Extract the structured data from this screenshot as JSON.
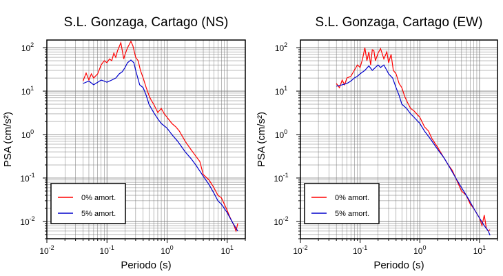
{
  "colors": {
    "undamped": "#ff0000",
    "damped": "#0000cc",
    "grid": "#777777",
    "frame": "#000000"
  },
  "chart_data": [
    {
      "type": "line",
      "title": "S.L. Gonzaga, Cartago (NS)",
      "xlabel": "Periodo (s)",
      "ylabel": "PSA (cm/s²)",
      "xscale": "log",
      "yscale": "log",
      "xlim": [
        0.01,
        20
      ],
      "ylim": [
        0.004,
        150
      ],
      "xticks": [
        {
          "base": "10",
          "exp": "-2"
        },
        {
          "base": "10",
          "exp": "-1"
        },
        {
          "base": "10",
          "exp": "0"
        },
        {
          "base": "10",
          "exp": "1"
        }
      ],
      "yticks": [
        {
          "base": "10",
          "exp": "-2"
        },
        {
          "base": "10",
          "exp": "-1"
        },
        {
          "base": "10",
          "exp": "0"
        },
        {
          "base": "10",
          "exp": "1"
        },
        {
          "base": "10",
          "exp": "2"
        }
      ],
      "grid": true,
      "legend_position": "bottom-left",
      "series": [
        {
          "name": "0% amort.",
          "color": "#ff0000",
          "x": [
            0.04,
            0.045,
            0.05,
            0.055,
            0.06,
            0.07,
            0.08,
            0.09,
            0.1,
            0.11,
            0.12,
            0.13,
            0.14,
            0.15,
            0.17,
            0.19,
            0.2,
            0.22,
            0.25,
            0.27,
            0.3,
            0.33,
            0.36,
            0.4,
            0.45,
            0.5,
            0.55,
            0.6,
            0.7,
            0.8,
            0.9,
            1.0,
            1.2,
            1.4,
            1.6,
            2.0,
            2.5,
            3.0,
            3.5,
            4.0,
            5.0,
            6.0,
            7.0,
            8.0,
            10.0,
            11.0,
            12.0,
            13.0,
            14.0,
            15.0
          ],
          "y": [
            17,
            26,
            18,
            25,
            20,
            25,
            40,
            50,
            45,
            55,
            50,
            75,
            60,
            85,
            130,
            55,
            70,
            100,
            140,
            110,
            60,
            50,
            30,
            20,
            12,
            8,
            6,
            5,
            3.2,
            4,
            3,
            2.5,
            1.8,
            1.5,
            1.2,
            0.7,
            0.45,
            0.32,
            0.24,
            0.12,
            0.09,
            0.06,
            0.04,
            0.035,
            0.018,
            0.013,
            0.01,
            0.008,
            0.006,
            0.009
          ]
        },
        {
          "name": "5% amort.",
          "color": "#0000cc",
          "x": [
            0.04,
            0.05,
            0.06,
            0.07,
            0.08,
            0.09,
            0.1,
            0.12,
            0.14,
            0.16,
            0.18,
            0.2,
            0.22,
            0.25,
            0.28,
            0.3,
            0.35,
            0.4,
            0.45,
            0.5,
            0.6,
            0.7,
            0.8,
            1.0,
            1.2,
            1.5,
            2.0,
            2.5,
            3.0,
            4.0,
            5.0,
            6.0,
            7.0,
            8.0,
            10.0,
            12.0,
            14.0,
            15.0
          ],
          "y": [
            15,
            17,
            14,
            16,
            18,
            17,
            16,
            18,
            20,
            25,
            28,
            35,
            45,
            52,
            45,
            30,
            14,
            12,
            8,
            5,
            3.2,
            2.3,
            1.8,
            1.4,
            1.0,
            0.7,
            0.4,
            0.28,
            0.2,
            0.11,
            0.07,
            0.045,
            0.03,
            0.025,
            0.016,
            0.01,
            0.007,
            0.006
          ]
        }
      ]
    },
    {
      "type": "line",
      "title": "S.L. Gonzaga, Cartago (EW)",
      "xlabel": "Periodo (s)",
      "ylabel": "PSA (cm/s²)",
      "xscale": "log",
      "yscale": "log",
      "xlim": [
        0.01,
        20
      ],
      "ylim": [
        0.004,
        150
      ],
      "xticks": [
        {
          "base": "10",
          "exp": "-2"
        },
        {
          "base": "10",
          "exp": "-1"
        },
        {
          "base": "10",
          "exp": "0"
        },
        {
          "base": "10",
          "exp": "1"
        }
      ],
      "yticks": [
        {
          "base": "10",
          "exp": "-2"
        },
        {
          "base": "10",
          "exp": "-1"
        },
        {
          "base": "10",
          "exp": "0"
        },
        {
          "base": "10",
          "exp": "1"
        },
        {
          "base": "10",
          "exp": "2"
        }
      ],
      "grid": true,
      "legend_position": "bottom-left",
      "series": [
        {
          "name": "0% amort.",
          "color": "#ff0000",
          "x": [
            0.04,
            0.045,
            0.05,
            0.055,
            0.06,
            0.07,
            0.08,
            0.09,
            0.1,
            0.11,
            0.12,
            0.13,
            0.14,
            0.15,
            0.16,
            0.17,
            0.18,
            0.2,
            0.22,
            0.25,
            0.28,
            0.3,
            0.33,
            0.36,
            0.4,
            0.45,
            0.5,
            0.55,
            0.6,
            0.7,
            0.8,
            1.0,
            1.2,
            1.4,
            1.6,
            2.0,
            2.5,
            3.0,
            3.5,
            4.0,
            5.0,
            6.0,
            7.0,
            8.0,
            10.0,
            11.0,
            12.0,
            13.0,
            14.0,
            15.0
          ],
          "y": [
            15,
            12,
            18,
            14,
            20,
            22,
            30,
            40,
            35,
            55,
            100,
            50,
            80,
            40,
            90,
            85,
            50,
            75,
            95,
            55,
            80,
            45,
            70,
            30,
            25,
            15,
            12,
            8,
            6,
            4,
            3.5,
            2.5,
            1.5,
            1.2,
            0.8,
            0.5,
            0.3,
            0.2,
            0.15,
            0.1,
            0.05,
            0.04,
            0.025,
            0.02,
            0.012,
            0.008,
            0.014,
            0.007,
            0.006,
            0.0065
          ]
        },
        {
          "name": "5% amort.",
          "color": "#0000cc",
          "x": [
            0.04,
            0.05,
            0.06,
            0.07,
            0.08,
            0.09,
            0.1,
            0.12,
            0.14,
            0.16,
            0.18,
            0.2,
            0.22,
            0.25,
            0.28,
            0.3,
            0.35,
            0.4,
            0.45,
            0.5,
            0.6,
            0.7,
            0.8,
            1.0,
            1.2,
            1.5,
            2.0,
            2.5,
            3.0,
            4.0,
            5.0,
            6.0,
            7.0,
            8.0,
            10.0,
            12.0,
            14.0,
            15.0
          ],
          "y": [
            13,
            14,
            15,
            17,
            20,
            22,
            25,
            30,
            38,
            30,
            35,
            40,
            35,
            40,
            30,
            25,
            20,
            12,
            8,
            5,
            4,
            3,
            2.5,
            1.8,
            1.2,
            0.8,
            0.45,
            0.3,
            0.2,
            0.1,
            0.06,
            0.04,
            0.028,
            0.02,
            0.012,
            0.008,
            0.006,
            0.0048
          ]
        }
      ]
    }
  ]
}
